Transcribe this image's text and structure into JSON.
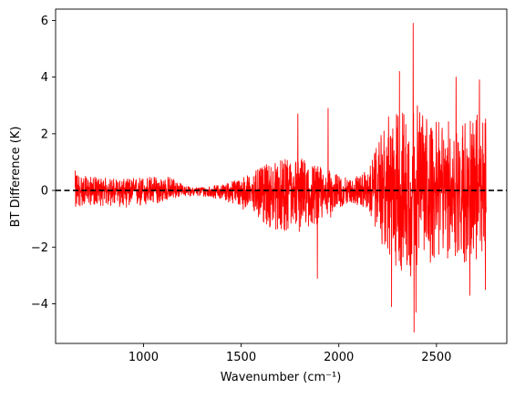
{
  "chart_data": {
    "type": "line",
    "xlabel": "Wavenumber (cm⁻¹)",
    "ylabel": "BT Difference (K)",
    "xlim": [
      550,
      2860
    ],
    "ylim": [
      -5.4,
      6.4
    ],
    "x_ticks": [
      {
        "value": 1000,
        "label": "1000"
      },
      {
        "value": 1500,
        "label": "1500"
      },
      {
        "value": 2000,
        "label": "2000"
      },
      {
        "value": 2500,
        "label": "2500"
      }
    ],
    "y_ticks": [
      {
        "value": -4,
        "label": "−4"
      },
      {
        "value": -2,
        "label": "−2"
      },
      {
        "value": 0,
        "label": "0"
      },
      {
        "value": 2,
        "label": "2"
      },
      {
        "value": 4,
        "label": "4"
      },
      {
        "value": 6,
        "label": "6"
      }
    ],
    "reference_line": {
      "y": 0,
      "style": "dashed",
      "color": "#000000"
    },
    "series": [
      {
        "color": "#ff0000",
        "x_range": [
          650,
          2755
        ],
        "envelope": [
          {
            "x": 650,
            "upper": 0.7,
            "lower": -0.7
          },
          {
            "x": 700,
            "upper": 0.5,
            "lower": -0.5
          },
          {
            "x": 900,
            "upper": 0.4,
            "lower": -0.6
          },
          {
            "x": 1000,
            "upper": 0.5,
            "lower": -0.6
          },
          {
            "x": 1150,
            "upper": 0.5,
            "lower": -0.3
          },
          {
            "x": 1200,
            "upper": 0.2,
            "lower": -0.2
          },
          {
            "x": 1250,
            "upper": 0.1,
            "lower": -0.2
          },
          {
            "x": 1400,
            "upper": 0.2,
            "lower": -0.3
          },
          {
            "x": 1550,
            "upper": 0.6,
            "lower": -0.8
          },
          {
            "x": 1650,
            "upper": 1.0,
            "lower": -1.4
          },
          {
            "x": 1800,
            "upper": 1.2,
            "lower": -1.5
          },
          {
            "x": 1950,
            "upper": 0.7,
            "lower": -1.0
          },
          {
            "x": 2050,
            "upper": 0.4,
            "lower": -0.4
          },
          {
            "x": 2150,
            "upper": 0.7,
            "lower": -0.7
          },
          {
            "x": 2250,
            "upper": 2.6,
            "lower": -2.4
          },
          {
            "x": 2380,
            "upper": 3.2,
            "lower": -3.4
          },
          {
            "x": 2500,
            "upper": 2.4,
            "lower": -2.4
          },
          {
            "x": 2650,
            "upper": 2.6,
            "lower": -2.6
          },
          {
            "x": 2755,
            "upper": 2.8,
            "lower": -2.7
          }
        ],
        "spikes": [
          {
            "x": 1790,
            "y": 2.7
          },
          {
            "x": 1890,
            "y": -3.1
          },
          {
            "x": 1945,
            "y": 2.9
          },
          {
            "x": 2270,
            "y": -4.1
          },
          {
            "x": 2310,
            "y": 4.2
          },
          {
            "x": 2380,
            "y": 5.9
          },
          {
            "x": 2385,
            "y": -5.0
          },
          {
            "x": 2395,
            "y": -4.3
          },
          {
            "x": 2600,
            "y": 4.0
          },
          {
            "x": 2670,
            "y": -3.7
          },
          {
            "x": 2720,
            "y": 3.9
          },
          {
            "x": 2750,
            "y": -3.5
          }
        ]
      }
    ]
  }
}
